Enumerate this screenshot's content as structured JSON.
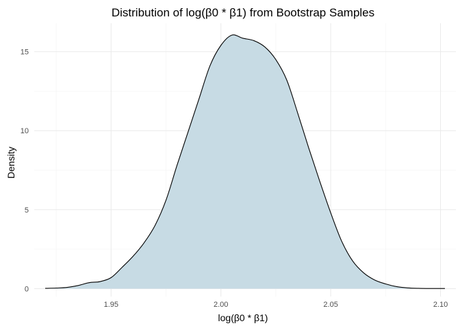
{
  "chart_data": {
    "type": "area",
    "title": "Distribution of log(β0 * β1) from Bootstrap Samples",
    "xlabel": "log(β0 * β1)",
    "ylabel": "Density",
    "xlim": [
      1.915,
      2.107
    ],
    "ylim": [
      -0.5,
      16.8
    ],
    "x_ticks": [
      1.95,
      2.0,
      2.05,
      2.1
    ],
    "x_tick_labels": [
      "1.95",
      "2.00",
      "2.05",
      "2.10"
    ],
    "y_ticks": [
      0,
      5,
      10,
      15
    ],
    "y_tick_labels": [
      "0",
      "5",
      "10",
      "15"
    ],
    "grid": true,
    "legend": "none",
    "fill_color": "#c7dbe4",
    "line_color": "#000000",
    "series": [
      {
        "x": [
          1.92,
          1.925,
          1.93,
          1.935,
          1.94,
          1.945,
          1.95,
          1.955,
          1.96,
          1.965,
          1.97,
          1.975,
          1.98,
          1.985,
          1.99,
          1.995,
          2.0,
          2.005,
          2.01,
          2.015,
          2.02,
          2.025,
          2.03,
          2.035,
          2.04,
          2.045,
          2.05,
          2.055,
          2.06,
          2.065,
          2.07,
          2.075,
          2.08,
          2.085,
          2.09,
          2.095,
          2.102
        ],
        "y": [
          0.02,
          0.04,
          0.08,
          0.2,
          0.38,
          0.45,
          0.7,
          1.35,
          2.05,
          2.9,
          4.0,
          5.6,
          7.8,
          9.9,
          12.0,
          14.1,
          15.4,
          16.05,
          15.85,
          15.7,
          15.3,
          14.5,
          13.2,
          11.1,
          8.9,
          6.8,
          4.8,
          3.0,
          1.75,
          1.0,
          0.55,
          0.3,
          0.13,
          0.05,
          0.02,
          0.01,
          0.01
        ]
      }
    ]
  }
}
